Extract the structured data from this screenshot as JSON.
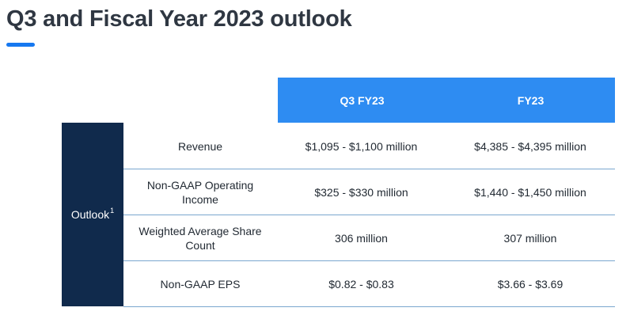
{
  "title": "Q3 and Fiscal Year 2023 outlook",
  "columns": [
    "Q3 FY23",
    "FY23"
  ],
  "side_label": "Outlook",
  "side_label_sup": "1",
  "rows": [
    {
      "metric": "Revenue",
      "q3": "$1,095 - $1,100 million",
      "fy": "$4,385 - $4,395 million"
    },
    {
      "metric": "Non-GAAP Operating Income",
      "q3": "$325 - $330 million",
      "fy": "$1,440 - $1,450 million"
    },
    {
      "metric": "Weighted Average Share Count",
      "q3": "306 million",
      "fy": "307 million"
    },
    {
      "metric": "Non-GAAP EPS",
      "q3": "$0.82 - $0.83",
      "fy": "$3.66 - $3.69"
    }
  ],
  "colors": {
    "header_blue": "#2e8cf2",
    "side_navy": "#102a4c",
    "accent": "#1678f0"
  }
}
